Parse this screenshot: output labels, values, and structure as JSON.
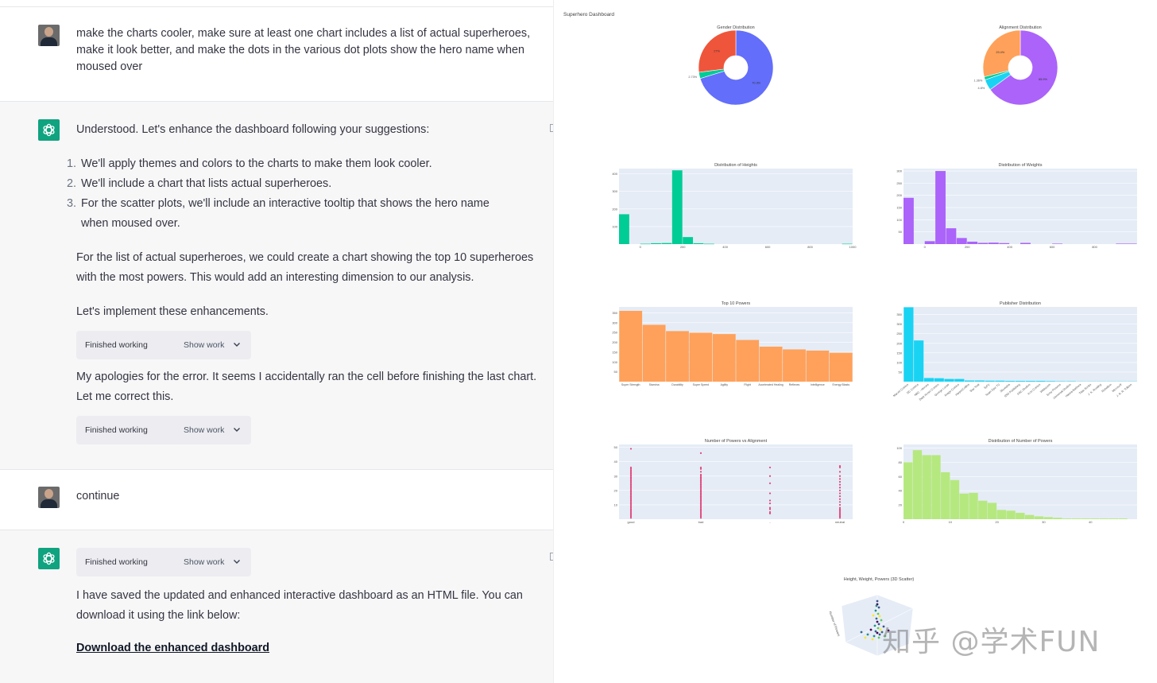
{
  "chat": {
    "messages": [
      {
        "role": "user",
        "text": "make the charts cooler, make sure at least one chart includes a list of actual superheroes, make it look better, and make the dots in the various dot plots show the hero name when moused over"
      },
      {
        "role": "assistant",
        "intro": "Understood. Let's enhance the dashboard following your suggestions:",
        "list": [
          {
            "n": "1.",
            "text": "We'll apply themes and colors to the charts to make them look cooler."
          },
          {
            "n": "2.",
            "text": "We'll include a chart that lists actual superheroes."
          },
          {
            "n": "3.",
            "text": "For the scatter plots, we'll include an interactive tooltip that shows the hero name when moused over."
          }
        ],
        "para1": "For the list of actual superheroes, we could create a chart showing the top 10 superheroes with the most powers. This would add an interesting dimension to our analysis.",
        "para2": "Let's implement these enhancements.",
        "work1": {
          "label": "Finished working",
          "show": "Show work"
        },
        "para3": "My apologies for the error. It seems I accidentally ran the cell before finishing the last chart. Let me correct this.",
        "work2": {
          "label": "Finished working",
          "show": "Show work"
        }
      },
      {
        "role": "user",
        "text": "continue"
      },
      {
        "role": "assistant",
        "work": {
          "label": "Finished working",
          "show": "Show work"
        },
        "text": "I have saved the updated and enhanced interactive dashboard as an HTML file. You can download it using the link below:",
        "link": "Download the enhanced dashboard"
      }
    ]
  },
  "dashboard": {
    "title": "Superhero Dashboard",
    "watermark": "知乎 @学术FUN"
  },
  "chart_data": [
    {
      "type": "pie",
      "title": "Gender Distribution",
      "hole": true,
      "slices": [
        {
          "value": 70.3,
          "label": "70.3%",
          "color": "#636efa"
        },
        {
          "value": 2.73,
          "label": "2.73%",
          "color": "#00cc96"
        },
        {
          "value": 27.0,
          "label": "27%",
          "color": "#ef553b"
        }
      ]
    },
    {
      "type": "pie",
      "title": "Alignment Distribution",
      "hole": true,
      "slices": [
        {
          "value": 65.9,
          "label": "65.9%",
          "color": "#ab63fa"
        },
        {
          "value": 4.8,
          "label": "4.8%",
          "color": "#19d3f3"
        },
        {
          "value": 1.36,
          "label": "1.36%",
          "color": "#00cc96"
        },
        {
          "value": 29.4,
          "label": "29.4%",
          "color": "#ffa15a"
        }
      ]
    },
    {
      "type": "bar",
      "title": "Distribution of Heights",
      "color": "#00cc96",
      "x_ticks": [
        "0",
        "200",
        "400",
        "600",
        "800",
        "1000"
      ],
      "y_ticks": [
        "100",
        "200",
        "300",
        "400"
      ],
      "ylim": [
        0,
        430
      ],
      "xlim": [
        -100,
        1000
      ],
      "bins": [
        {
          "x0": -100,
          "x1": -50,
          "v": 170
        },
        {
          "x0": 0,
          "x1": 50,
          "v": 2
        },
        {
          "x0": 50,
          "x1": 100,
          "v": 5
        },
        {
          "x0": 100,
          "x1": 150,
          "v": 6
        },
        {
          "x0": 150,
          "x1": 200,
          "v": 420
        },
        {
          "x0": 200,
          "x1": 250,
          "v": 40
        },
        {
          "x0": 250,
          "x1": 300,
          "v": 5
        },
        {
          "x0": 300,
          "x1": 350,
          "v": 2
        },
        {
          "x0": 950,
          "x1": 1000,
          "v": 2
        }
      ]
    },
    {
      "type": "bar",
      "title": "Distribution of Weights",
      "color": "#ab63fa",
      "x_ticks": [
        "0",
        "200",
        "400",
        "600",
        "800"
      ],
      "y_ticks": [
        "50",
        "100",
        "150",
        "200",
        "250",
        "300"
      ],
      "ylim": [
        0,
        310
      ],
      "xlim": [
        -100,
        1000
      ],
      "bins": [
        {
          "x0": -100,
          "x1": -50,
          "v": 190
        },
        {
          "x0": 0,
          "x1": 50,
          "v": 12
        },
        {
          "x0": 50,
          "x1": 100,
          "v": 300
        },
        {
          "x0": 100,
          "x1": 150,
          "v": 65
        },
        {
          "x0": 150,
          "x1": 200,
          "v": 25
        },
        {
          "x0": 200,
          "x1": 250,
          "v": 10
        },
        {
          "x0": 250,
          "x1": 300,
          "v": 5
        },
        {
          "x0": 300,
          "x1": 350,
          "v": 6
        },
        {
          "x0": 350,
          "x1": 400,
          "v": 4
        },
        {
          "x0": 450,
          "x1": 500,
          "v": 5
        },
        {
          "x0": 600,
          "x1": 650,
          "v": 2
        },
        {
          "x0": 900,
          "x1": 1000,
          "v": 2
        }
      ]
    },
    {
      "type": "bar",
      "title": "Top 10 Powers",
      "color": "#ffa15a",
      "categories": [
        "Super Strength",
        "Stamina",
        "Durability",
        "Super Speed",
        "Agility",
        "Flight",
        "Accelerated Healing",
        "Reflexes",
        "Intelligence",
        "Energy Blasts"
      ],
      "values": [
        360,
        289,
        257,
        249,
        242,
        212,
        178,
        164,
        158,
        147
      ],
      "y_ticks": [
        "50",
        "100",
        "150",
        "200",
        "250",
        "300",
        "350"
      ],
      "ylim": [
        0,
        380
      ]
    },
    {
      "type": "bar",
      "title": "Publisher Distribution",
      "color": "#19d3f3",
      "categories": [
        "Marvel Comics",
        "DC Comics",
        "NBC - Heroes",
        "Dark Horse Comics",
        "George Lucas",
        "Image Comics",
        "HarperCollins",
        "Star Trek",
        "SyFy",
        "Team Epic TV",
        "Shueisha",
        "IDW Publishing",
        "ABC Studios",
        "Icon Comics",
        "Wildstorm",
        "Sony Pictures",
        "Universal Studios",
        "Hanna-Barbera",
        "Titan Books",
        "J. K. Rowling",
        "Rebellion",
        "Microsoft",
        "J. R. R. Tolkien"
      ],
      "values": [
        388,
        215,
        19,
        18,
        14,
        14,
        6,
        6,
        5,
        5,
        4,
        4,
        4,
        4,
        3,
        2,
        2,
        1,
        1,
        1,
        1,
        1,
        1
      ],
      "y_ticks": [
        "50",
        "100",
        "150",
        "200",
        "250",
        "300",
        "350"
      ],
      "ylim": [
        0,
        390
      ]
    },
    {
      "type": "scatter",
      "title": "Number of Powers vs Alignment",
      "color": "#e0457b",
      "categories": [
        "good",
        "bad",
        "-",
        "neutral"
      ],
      "y_ticks": [
        "10",
        "20",
        "30",
        "40",
        "50"
      ],
      "ylim": [
        0,
        52
      ],
      "points": [
        [
          0,
          49
        ],
        [
          0,
          36
        ],
        [
          0,
          35
        ],
        [
          0,
          34
        ],
        [
          0,
          33
        ],
        [
          0,
          32
        ],
        [
          0,
          31
        ],
        [
          0,
          30
        ],
        [
          0,
          29
        ],
        [
          0,
          28
        ],
        [
          0,
          27
        ],
        [
          0,
          26
        ],
        [
          0,
          25
        ],
        [
          0,
          24
        ],
        [
          0,
          23
        ],
        [
          0,
          22
        ],
        [
          0,
          21
        ],
        [
          0,
          20
        ],
        [
          0,
          19
        ],
        [
          0,
          18
        ],
        [
          0,
          17
        ],
        [
          0,
          16
        ],
        [
          0,
          15
        ],
        [
          0,
          14
        ],
        [
          0,
          13
        ],
        [
          0,
          12
        ],
        [
          0,
          11
        ],
        [
          0,
          10
        ],
        [
          0,
          9
        ],
        [
          0,
          8
        ],
        [
          0,
          7
        ],
        [
          0,
          6
        ],
        [
          0,
          5
        ],
        [
          0,
          4
        ],
        [
          0,
          3
        ],
        [
          0,
          2
        ],
        [
          0,
          1
        ],
        [
          1,
          46
        ],
        [
          1,
          36
        ],
        [
          1,
          35
        ],
        [
          1,
          33
        ],
        [
          1,
          31
        ],
        [
          1,
          30
        ],
        [
          1,
          29
        ],
        [
          1,
          28
        ],
        [
          1,
          27
        ],
        [
          1,
          26
        ],
        [
          1,
          25
        ],
        [
          1,
          24
        ],
        [
          1,
          23
        ],
        [
          1,
          22
        ],
        [
          1,
          21
        ],
        [
          1,
          20
        ],
        [
          1,
          19
        ],
        [
          1,
          18
        ],
        [
          1,
          17
        ],
        [
          1,
          16
        ],
        [
          1,
          15
        ],
        [
          1,
          14
        ],
        [
          1,
          13
        ],
        [
          1,
          12
        ],
        [
          1,
          11
        ],
        [
          1,
          10
        ],
        [
          1,
          9
        ],
        [
          1,
          8
        ],
        [
          1,
          7
        ],
        [
          1,
          6
        ],
        [
          1,
          5
        ],
        [
          1,
          4
        ],
        [
          1,
          3
        ],
        [
          1,
          2
        ],
        [
          1,
          1
        ],
        [
          2,
          36
        ],
        [
          2,
          30
        ],
        [
          2,
          25
        ],
        [
          2,
          18
        ],
        [
          2,
          13
        ],
        [
          2,
          11
        ],
        [
          2,
          8
        ],
        [
          2,
          7
        ],
        [
          2,
          5
        ],
        [
          2,
          4
        ],
        [
          3,
          37
        ],
        [
          3,
          36
        ],
        [
          3,
          33
        ],
        [
          3,
          30
        ],
        [
          3,
          28
        ],
        [
          3,
          26
        ],
        [
          3,
          24
        ],
        [
          3,
          22
        ],
        [
          3,
          20
        ],
        [
          3,
          18
        ],
        [
          3,
          16
        ],
        [
          3,
          14
        ],
        [
          3,
          12
        ],
        [
          3,
          10
        ],
        [
          3,
          8
        ],
        [
          3,
          7
        ],
        [
          3,
          6
        ],
        [
          3,
          5
        ],
        [
          3,
          4
        ],
        [
          3,
          3
        ],
        [
          3,
          2
        ],
        [
          3,
          1
        ]
      ]
    },
    {
      "type": "bar",
      "title": "Distribution of Number of Powers",
      "color": "#b6e880",
      "x_ticks": [
        "0",
        "10",
        "20",
        "30",
        "40"
      ],
      "y_ticks": [
        "20",
        "40",
        "60",
        "80",
        "100"
      ],
      "ylim": [
        0,
        105
      ],
      "xlim": [
        0,
        50
      ],
      "values": [
        80,
        97,
        90,
        90,
        66,
        55,
        36,
        37,
        26,
        23,
        13,
        12,
        9,
        6,
        4,
        3,
        2,
        1,
        1,
        1,
        1,
        1,
        1,
        1
      ]
    },
    {
      "type": "scatter",
      "title": "Height, Weight, Powers (3D Scatter)",
      "zlabel": "Number of Powers"
    }
  ]
}
